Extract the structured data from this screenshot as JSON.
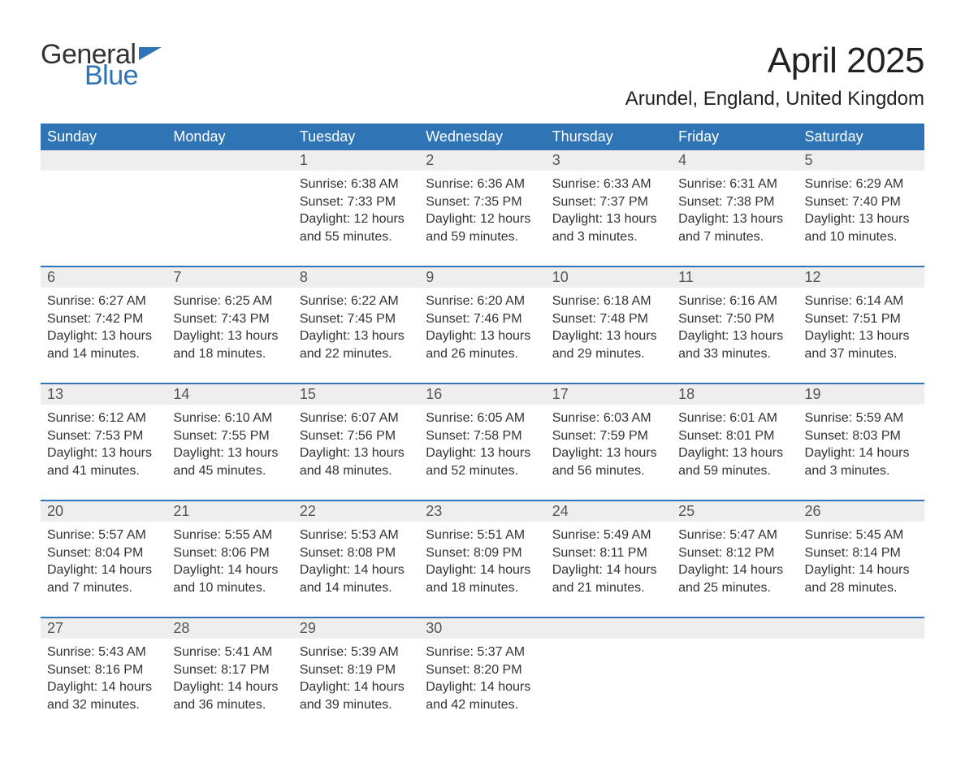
{
  "brand": {
    "line1": "General",
    "line2": "Blue",
    "text_color": "#333333",
    "accent_color": "#2f74b5"
  },
  "title": "April 2025",
  "location": "Arundel, England, United Kingdom",
  "colors": {
    "header_bg": "#2f74b5",
    "header_text": "#ffffff",
    "daynum_bg": "#eeeeee",
    "row_border": "#2f74b5",
    "body_text": "#333333",
    "page_bg": "#ffffff"
  },
  "typography": {
    "title_fontsize": 44,
    "location_fontsize": 24,
    "weekday_fontsize": 18,
    "daynum_fontsize": 18,
    "cell_fontsize": 16
  },
  "weekdays": [
    "Sunday",
    "Monday",
    "Tuesday",
    "Wednesday",
    "Thursday",
    "Friday",
    "Saturday"
  ],
  "weeks": [
    {
      "days": [
        {
          "n": "",
          "sunrise": "",
          "sunset": "",
          "daylight": ""
        },
        {
          "n": "",
          "sunrise": "",
          "sunset": "",
          "daylight": ""
        },
        {
          "n": "1",
          "sunrise": "Sunrise: 6:38 AM",
          "sunset": "Sunset: 7:33 PM",
          "daylight": "Daylight: 12 hours and 55 minutes."
        },
        {
          "n": "2",
          "sunrise": "Sunrise: 6:36 AM",
          "sunset": "Sunset: 7:35 PM",
          "daylight": "Daylight: 12 hours and 59 minutes."
        },
        {
          "n": "3",
          "sunrise": "Sunrise: 6:33 AM",
          "sunset": "Sunset: 7:37 PM",
          "daylight": "Daylight: 13 hours and 3 minutes."
        },
        {
          "n": "4",
          "sunrise": "Sunrise: 6:31 AM",
          "sunset": "Sunset: 7:38 PM",
          "daylight": "Daylight: 13 hours and 7 minutes."
        },
        {
          "n": "5",
          "sunrise": "Sunrise: 6:29 AM",
          "sunset": "Sunset: 7:40 PM",
          "daylight": "Daylight: 13 hours and 10 minutes."
        }
      ]
    },
    {
      "days": [
        {
          "n": "6",
          "sunrise": "Sunrise: 6:27 AM",
          "sunset": "Sunset: 7:42 PM",
          "daylight": "Daylight: 13 hours and 14 minutes."
        },
        {
          "n": "7",
          "sunrise": "Sunrise: 6:25 AM",
          "sunset": "Sunset: 7:43 PM",
          "daylight": "Daylight: 13 hours and 18 minutes."
        },
        {
          "n": "8",
          "sunrise": "Sunrise: 6:22 AM",
          "sunset": "Sunset: 7:45 PM",
          "daylight": "Daylight: 13 hours and 22 minutes."
        },
        {
          "n": "9",
          "sunrise": "Sunrise: 6:20 AM",
          "sunset": "Sunset: 7:46 PM",
          "daylight": "Daylight: 13 hours and 26 minutes."
        },
        {
          "n": "10",
          "sunrise": "Sunrise: 6:18 AM",
          "sunset": "Sunset: 7:48 PM",
          "daylight": "Daylight: 13 hours and 29 minutes."
        },
        {
          "n": "11",
          "sunrise": "Sunrise: 6:16 AM",
          "sunset": "Sunset: 7:50 PM",
          "daylight": "Daylight: 13 hours and 33 minutes."
        },
        {
          "n": "12",
          "sunrise": "Sunrise: 6:14 AM",
          "sunset": "Sunset: 7:51 PM",
          "daylight": "Daylight: 13 hours and 37 minutes."
        }
      ]
    },
    {
      "days": [
        {
          "n": "13",
          "sunrise": "Sunrise: 6:12 AM",
          "sunset": "Sunset: 7:53 PM",
          "daylight": "Daylight: 13 hours and 41 minutes."
        },
        {
          "n": "14",
          "sunrise": "Sunrise: 6:10 AM",
          "sunset": "Sunset: 7:55 PM",
          "daylight": "Daylight: 13 hours and 45 minutes."
        },
        {
          "n": "15",
          "sunrise": "Sunrise: 6:07 AM",
          "sunset": "Sunset: 7:56 PM",
          "daylight": "Daylight: 13 hours and 48 minutes."
        },
        {
          "n": "16",
          "sunrise": "Sunrise: 6:05 AM",
          "sunset": "Sunset: 7:58 PM",
          "daylight": "Daylight: 13 hours and 52 minutes."
        },
        {
          "n": "17",
          "sunrise": "Sunrise: 6:03 AM",
          "sunset": "Sunset: 7:59 PM",
          "daylight": "Daylight: 13 hours and 56 minutes."
        },
        {
          "n": "18",
          "sunrise": "Sunrise: 6:01 AM",
          "sunset": "Sunset: 8:01 PM",
          "daylight": "Daylight: 13 hours and 59 minutes."
        },
        {
          "n": "19",
          "sunrise": "Sunrise: 5:59 AM",
          "sunset": "Sunset: 8:03 PM",
          "daylight": "Daylight: 14 hours and 3 minutes."
        }
      ]
    },
    {
      "days": [
        {
          "n": "20",
          "sunrise": "Sunrise: 5:57 AM",
          "sunset": "Sunset: 8:04 PM",
          "daylight": "Daylight: 14 hours and 7 minutes."
        },
        {
          "n": "21",
          "sunrise": "Sunrise: 5:55 AM",
          "sunset": "Sunset: 8:06 PM",
          "daylight": "Daylight: 14 hours and 10 minutes."
        },
        {
          "n": "22",
          "sunrise": "Sunrise: 5:53 AM",
          "sunset": "Sunset: 8:08 PM",
          "daylight": "Daylight: 14 hours and 14 minutes."
        },
        {
          "n": "23",
          "sunrise": "Sunrise: 5:51 AM",
          "sunset": "Sunset: 8:09 PM",
          "daylight": "Daylight: 14 hours and 18 minutes."
        },
        {
          "n": "24",
          "sunrise": "Sunrise: 5:49 AM",
          "sunset": "Sunset: 8:11 PM",
          "daylight": "Daylight: 14 hours and 21 minutes."
        },
        {
          "n": "25",
          "sunrise": "Sunrise: 5:47 AM",
          "sunset": "Sunset: 8:12 PM",
          "daylight": "Daylight: 14 hours and 25 minutes."
        },
        {
          "n": "26",
          "sunrise": "Sunrise: 5:45 AM",
          "sunset": "Sunset: 8:14 PM",
          "daylight": "Daylight: 14 hours and 28 minutes."
        }
      ]
    },
    {
      "days": [
        {
          "n": "27",
          "sunrise": "Sunrise: 5:43 AM",
          "sunset": "Sunset: 8:16 PM",
          "daylight": "Daylight: 14 hours and 32 minutes."
        },
        {
          "n": "28",
          "sunrise": "Sunrise: 5:41 AM",
          "sunset": "Sunset: 8:17 PM",
          "daylight": "Daylight: 14 hours and 36 minutes."
        },
        {
          "n": "29",
          "sunrise": "Sunrise: 5:39 AM",
          "sunset": "Sunset: 8:19 PM",
          "daylight": "Daylight: 14 hours and 39 minutes."
        },
        {
          "n": "30",
          "sunrise": "Sunrise: 5:37 AM",
          "sunset": "Sunset: 8:20 PM",
          "daylight": "Daylight: 14 hours and 42 minutes."
        },
        {
          "n": "",
          "sunrise": "",
          "sunset": "",
          "daylight": ""
        },
        {
          "n": "",
          "sunrise": "",
          "sunset": "",
          "daylight": ""
        },
        {
          "n": "",
          "sunrise": "",
          "sunset": "",
          "daylight": ""
        }
      ]
    }
  ]
}
